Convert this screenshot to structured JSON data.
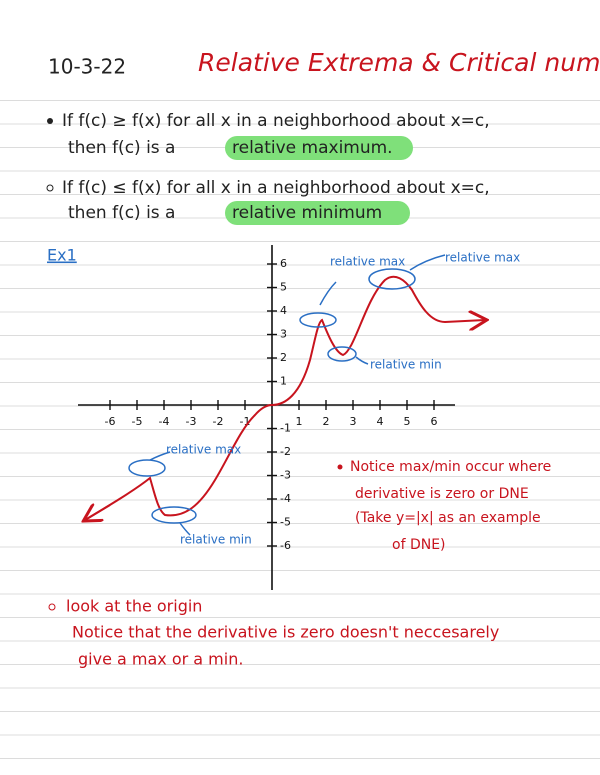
{
  "header": {
    "date": "10-3-22",
    "title": "Relative Extrema & Critical numbers"
  },
  "definitions": [
    {
      "line1": "If f(c) ≥ f(x) for all x in a neighborhood about x=c,",
      "line2": "then f(c) is a",
      "highlight": "relative maximum."
    },
    {
      "line1": "If f(c) ≤ f(x) for all x in a neighborhood about x=c,",
      "line2": "then f(c) is a",
      "highlight": "relative minimum"
    }
  ],
  "example": {
    "label": "Ex1",
    "x_ticks": [
      "-6",
      "-5",
      "-4",
      "-3",
      "-2",
      "-1",
      "1",
      "2",
      "3",
      "4",
      "5",
      "6"
    ],
    "y_ticks": [
      "-6",
      "-5",
      "-4",
      "-3",
      "-2",
      "-1",
      "1",
      "2",
      "3",
      "4",
      "5",
      "6"
    ],
    "annotations": [
      "relative max",
      "relative max",
      "relative min",
      "relative max",
      "relative min"
    ],
    "note": [
      "Notice max/min occur where",
      "derivative is zero or DNE",
      "(Take y=|x| as an example",
      "of DNE)"
    ]
  },
  "footer_note": [
    "look at the origin",
    "Notice that the derivative is zero doesn't neccesarely",
    "give a max or a min."
  ]
}
